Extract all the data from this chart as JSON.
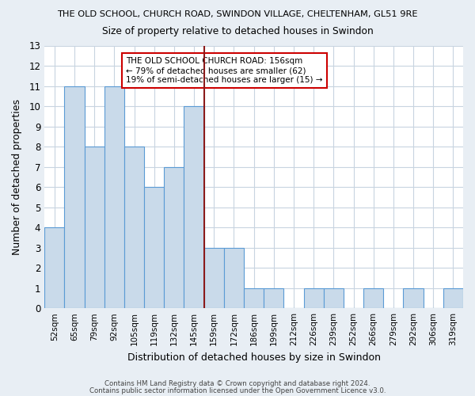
{
  "title1": "THE OLD SCHOOL, CHURCH ROAD, SWINDON VILLAGE, CHELTENHAM, GL51 9RE",
  "title2": "Size of property relative to detached houses in Swindon",
  "xlabel": "Distribution of detached houses by size in Swindon",
  "ylabel": "Number of detached properties",
  "categories": [
    "52sqm",
    "65sqm",
    "79sqm",
    "92sqm",
    "105sqm",
    "119sqm",
    "132sqm",
    "145sqm",
    "159sqm",
    "172sqm",
    "186sqm",
    "199sqm",
    "212sqm",
    "226sqm",
    "239sqm",
    "252sqm",
    "266sqm",
    "279sqm",
    "292sqm",
    "306sqm",
    "319sqm"
  ],
  "values": [
    4,
    11,
    8,
    11,
    8,
    6,
    7,
    10,
    3,
    3,
    1,
    1,
    0,
    1,
    1,
    0,
    1,
    0,
    1,
    0,
    1
  ],
  "bar_color": "#c9daea",
  "bar_edge_color": "#5b9bd5",
  "red_line_after_index": 7,
  "ylim": [
    0,
    13
  ],
  "yticks": [
    0,
    1,
    2,
    3,
    4,
    5,
    6,
    7,
    8,
    9,
    10,
    11,
    12,
    13
  ],
  "annotation_title": "THE OLD SCHOOL CHURCH ROAD: 156sqm",
  "annotation_line1": "← 79% of detached houses are smaller (62)",
  "annotation_line2": "19% of semi-detached houses are larger (15) →",
  "footnote1": "Contains HM Land Registry data © Crown copyright and database right 2024.",
  "footnote2": "Contains public sector information licensed under the Open Government Licence v3.0.",
  "fig_bg_color": "#e8eef4",
  "plot_bg_color": "#ffffff",
  "grid_color": "#c8d4e0"
}
